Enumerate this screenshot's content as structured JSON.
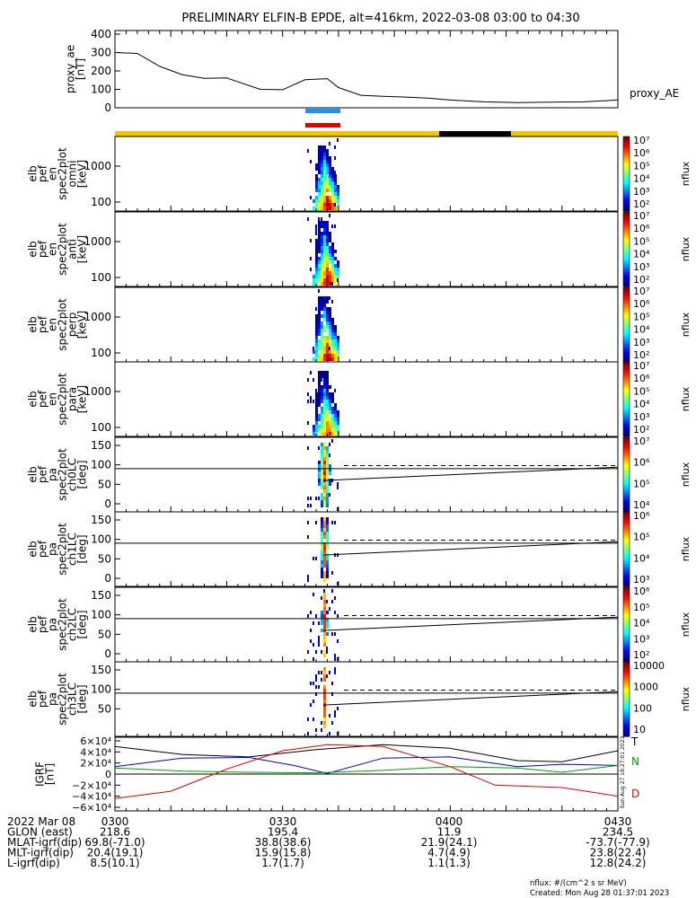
{
  "title": "PRELIMINARY ELFIN-B EPDE, alt=416km, 2022-03-08 03:00 to 04:30",
  "ae": {
    "ylabel_lines": [
      "proxy_ae",
      "[nT]"
    ],
    "yticks": [
      "400",
      "300",
      "200",
      "100",
      "0"
    ],
    "series_label": "proxy_AE",
    "ylim": [
      0,
      400
    ],
    "minutes": [
      0,
      4,
      8,
      12,
      16,
      20,
      26,
      30,
      34,
      38,
      40,
      44,
      48,
      52,
      56,
      60,
      66,
      72,
      78,
      84,
      90
    ],
    "values": [
      300,
      295,
      225,
      180,
      160,
      162,
      100,
      98,
      152,
      158,
      110,
      68,
      62,
      58,
      52,
      42,
      32,
      28,
      30,
      32,
      42
    ]
  },
  "bars": {
    "upper_color": "#1e90ff",
    "lower_color": "#e00000",
    "strip_color": "#f5c400",
    "strip_dark": "#000000"
  },
  "panels": [
    {
      "lines": [
        "elb",
        "pef",
        "en",
        "spec2plot",
        "omni",
        "[keV]"
      ],
      "yticks": [
        "1000",
        "100"
      ],
      "cb_ticks": [
        "10⁷",
        "10⁶",
        "10⁵",
        "10⁴",
        "10³",
        "10²"
      ],
      "cb_label": "nflux"
    },
    {
      "lines": [
        "elb",
        "pef",
        "en",
        "spec2plot",
        "anti",
        "[keV]"
      ],
      "yticks": [
        "1000",
        "100"
      ],
      "cb_ticks": [
        "10⁷",
        "10⁶",
        "10⁵",
        "10⁴",
        "10³",
        "10²"
      ],
      "cb_label": "nflux"
    },
    {
      "lines": [
        "elb",
        "pef",
        "en",
        "spec2plot",
        "perp",
        "[keV]"
      ],
      "yticks": [
        "1000",
        "100"
      ],
      "cb_ticks": [
        "10⁷",
        "10⁶",
        "10⁵",
        "10⁴",
        "10³",
        "10²"
      ],
      "cb_label": "nflux"
    },
    {
      "lines": [
        "elb",
        "pef",
        "en",
        "spec2plot",
        "para",
        "[keV]"
      ],
      "yticks": [
        "1000",
        "100"
      ],
      "cb_ticks": [
        "10⁷",
        "10⁶",
        "10⁵",
        "10⁴",
        "10³",
        "10²"
      ],
      "cb_label": "nflux"
    },
    {
      "lines": [
        "elb",
        "pef",
        "pa",
        "spec2plot",
        "ch0LC",
        "[deg]"
      ],
      "yticks": [
        "150",
        "100",
        "50",
        "0"
      ],
      "cb_ticks": [
        "10⁷",
        "10⁶",
        "10⁵",
        "10⁴"
      ],
      "cb_label": "nflux"
    },
    {
      "lines": [
        "elb",
        "pef",
        "pa",
        "spec2plot",
        "ch1LC",
        "[deg]"
      ],
      "yticks": [
        "150",
        "100",
        "50",
        "0"
      ],
      "cb_ticks": [
        "10⁶",
        "10⁵",
        "10⁴",
        "10³"
      ],
      "cb_label": "nflux"
    },
    {
      "lines": [
        "elb",
        "pef",
        "pa",
        "spec2plot",
        "ch2LC",
        "[deg]"
      ],
      "yticks": [
        "150",
        "100",
        "50",
        "0"
      ],
      "cb_ticks": [
        "10⁶",
        "10⁵",
        "10⁴",
        "10³",
        "10²"
      ],
      "cb_label": "nflux"
    },
    {
      "lines": [
        "elb",
        "pef",
        "pa",
        "spec2plot",
        "ch3LC",
        "[deg]"
      ],
      "yticks": [
        "150",
        "100",
        "50"
      ],
      "cb_ticks": [
        "10000",
        "1000",
        "100",
        "10"
      ],
      "cb_label": "nflux"
    }
  ],
  "igrf": {
    "ylabel_lines": [
      "IGRF",
      "[nT]"
    ],
    "yticks": [
      "6×10⁴",
      "4×10⁴",
      "2×10⁴",
      "0",
      "−2×10⁴",
      "−4×10⁴",
      "−6×10⁴"
    ],
    "ylim": [
      -60000,
      60000
    ],
    "legend": [
      {
        "label": "T",
        "color": "#000000"
      },
      {
        "label": "N",
        "color": "#00a000"
      },
      {
        "label": "D",
        "color": "#e00000"
      }
    ],
    "series": [
      {
        "name": "T",
        "color": "#000000",
        "minutes": [
          0,
          12,
          24,
          36,
          48,
          60,
          72,
          80,
          90
        ],
        "values": [
          45000,
          32000,
          28000,
          40000,
          48000,
          42000,
          22000,
          20000,
          38000
        ]
      },
      {
        "name": "",
        "color": "#0000cc",
        "minutes": [
          0,
          12,
          24,
          32,
          38,
          48,
          60,
          72,
          80,
          90
        ],
        "values": [
          12000,
          26000,
          27000,
          14000,
          1000,
          26000,
          28000,
          12000,
          16000,
          14000
        ]
      },
      {
        "name": "",
        "color": "#e00000",
        "minutes": [
          0,
          10,
          20,
          30,
          38,
          48,
          60,
          68,
          80,
          90
        ],
        "values": [
          -40000,
          -28000,
          8000,
          38000,
          48000,
          45000,
          12000,
          -18000,
          -22000,
          -36000
        ]
      },
      {
        "name": "N",
        "color": "#00a000",
        "minutes": [
          0,
          12,
          24,
          36,
          48,
          60,
          72,
          80,
          90
        ],
        "values": [
          10000,
          5000,
          3000,
          2000,
          6000,
          12000,
          10000,
          3000,
          14000
        ]
      }
    ],
    "side_text": "Sun Aug 27 18:27:01 2023"
  },
  "time_ticks": [
    "0300",
    "0330",
    "0400",
    "0430"
  ],
  "orbit_rows": [
    {
      "label": "2022 Mar 08",
      "values": [
        "0300",
        "0330",
        "0400",
        "0430"
      ]
    },
    {
      "label": "GLON (east)",
      "values": [
        "218.6",
        "195.4",
        "11.9",
        "234.5"
      ]
    },
    {
      "label": "MLAT-igrf(dip)",
      "values": [
        "69.8(-71.0)",
        "38.8(38.6)",
        "21.9(24.1)",
        "-73.7(-77.9)"
      ]
    },
    {
      "label": "MLT-igrf(dip)",
      "values": [
        "20.4(19.1)",
        "15.9(15.8)",
        "4.7(4.9)",
        "23.8(22.4)"
      ]
    },
    {
      "label": "L-igrf(dip)",
      "values": [
        "8.5(10.1)",
        "1.7(1.7)",
        "1.1(1.3)",
        "12.8(24.2)"
      ]
    }
  ],
  "footer": {
    "units": "nflux: #/(cm^2 s sr MeV)",
    "created": "Created: Mon Aug 28 01:37:01 2023"
  }
}
